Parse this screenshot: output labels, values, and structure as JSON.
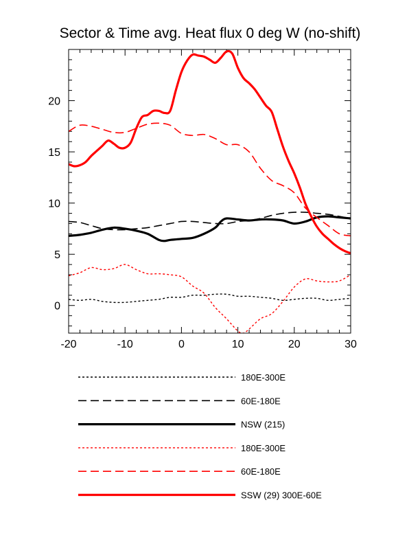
{
  "chart_data": {
    "type": "line",
    "title": "Sector & Time avg. Heat flux 0 deg W (no-shift)",
    "xlabel": "",
    "ylabel": "",
    "xlim": [
      -20,
      30
    ],
    "ylim": [
      -2.7,
      25
    ],
    "x_ticks": [
      -20,
      -10,
      0,
      10,
      20,
      30
    ],
    "x_tick_labels": [
      "-20",
      "-10",
      "0",
      "10",
      "20",
      "30"
    ],
    "y_ticks": [
      0,
      5,
      10,
      15,
      20
    ],
    "y_tick_labels": [
      "0",
      "5",
      "10",
      "15",
      "20"
    ],
    "legend_position": "bottom",
    "series": [
      {
        "name": "180E-300E",
        "color": "#000000",
        "style": "dotted",
        "width": "thin",
        "x": [
          -20,
          -18,
          -16,
          -14,
          -12,
          -10,
          -8,
          -6,
          -4,
          -2,
          0,
          2,
          4,
          6,
          8,
          10,
          12,
          14,
          16,
          18,
          20,
          22,
          24,
          26,
          28,
          30
        ],
        "y": [
          0.6,
          0.5,
          0.6,
          0.4,
          0.3,
          0.3,
          0.4,
          0.5,
          0.6,
          0.8,
          0.8,
          1.0,
          1.0,
          1.1,
          1.1,
          0.9,
          0.9,
          0.8,
          0.7,
          0.5,
          0.6,
          0.7,
          0.7,
          0.5,
          0.6,
          0.7
        ]
      },
      {
        "name": "60E-180E",
        "color": "#000000",
        "style": "dashed",
        "width": "medium",
        "x": [
          -20,
          -18,
          -16,
          -14,
          -12,
          -10,
          -8,
          -6,
          -4,
          -2,
          0,
          2,
          4,
          6,
          8,
          10,
          12,
          14,
          16,
          18,
          20,
          22,
          24,
          26,
          28,
          30
        ],
        "y": [
          8.2,
          8.1,
          7.8,
          7.5,
          7.4,
          7.4,
          7.5,
          7.6,
          7.8,
          8.0,
          8.2,
          8.2,
          8.1,
          8.0,
          8.0,
          8.2,
          8.3,
          8.5,
          8.8,
          9.0,
          9.1,
          9.1,
          9.0,
          8.9,
          8.7,
          8.5
        ]
      },
      {
        "name": "NSW (215)",
        "color": "#000000",
        "style": "solid",
        "width": "thick",
        "x": [
          -20,
          -18,
          -16,
          -14,
          -12,
          -10,
          -8,
          -6,
          -4,
          -3,
          -2,
          0,
          2,
          4,
          6,
          7,
          8,
          10,
          12,
          14,
          16,
          18,
          20,
          22,
          24,
          26,
          28,
          30
        ],
        "y": [
          6.8,
          6.9,
          7.1,
          7.4,
          7.6,
          7.5,
          7.3,
          7.0,
          6.4,
          6.3,
          6.4,
          6.5,
          6.6,
          7.0,
          7.6,
          8.2,
          8.5,
          8.4,
          8.3,
          8.4,
          8.4,
          8.3,
          8.0,
          8.2,
          8.6,
          8.7,
          8.6,
          8.5
        ]
      },
      {
        "name": "180E-300E",
        "color": "#ff0000",
        "style": "dotted",
        "width": "thin",
        "x": [
          -20,
          -18,
          -16,
          -14,
          -12,
          -10,
          -8,
          -6,
          -4,
          -2,
          0,
          2,
          4,
          6,
          8,
          10,
          11,
          12,
          14,
          16,
          18,
          20,
          22,
          24,
          26,
          28,
          30
        ],
        "y": [
          2.9,
          3.2,
          3.7,
          3.5,
          3.6,
          4.0,
          3.5,
          3.1,
          3.1,
          3.0,
          2.8,
          1.9,
          1.2,
          -0.2,
          -1.3,
          -2.5,
          -2.7,
          -2.3,
          -1.3,
          -0.8,
          0.4,
          1.8,
          2.6,
          2.4,
          2.3,
          2.4,
          3.0
        ]
      },
      {
        "name": "60E-180E",
        "color": "#ff0000",
        "style": "dashed",
        "width": "medium",
        "x": [
          -20,
          -18,
          -16,
          -14,
          -12,
          -10,
          -8,
          -6,
          -4,
          -2,
          0,
          2,
          4,
          6,
          8,
          10,
          12,
          14,
          16,
          18,
          20,
          22,
          24,
          26,
          28,
          30
        ],
        "y": [
          17.0,
          17.6,
          17.5,
          17.2,
          16.9,
          16.9,
          17.3,
          17.7,
          17.8,
          17.6,
          16.8,
          16.6,
          16.7,
          16.3,
          15.7,
          15.7,
          15.0,
          13.4,
          12.2,
          11.7,
          11.0,
          9.5,
          8.6,
          7.8,
          7.0,
          6.8
        ]
      },
      {
        "name": "SSW (29) 300E-60E",
        "color": "#ff0000",
        "style": "solid",
        "width": "thick",
        "x": [
          -20,
          -19,
          -18,
          -17,
          -16,
          -15,
          -14,
          -13,
          -12,
          -11,
          -10,
          -9,
          -8,
          -7,
          -6,
          -5,
          -4,
          -3,
          -2,
          -1,
          0,
          1,
          2,
          3,
          4,
          5,
          6,
          7,
          8,
          9,
          10,
          11,
          12,
          13,
          14,
          15,
          16,
          17,
          18,
          19,
          20,
          21,
          22,
          23,
          24,
          25,
          26,
          27,
          28,
          29,
          30
        ],
        "y": [
          13.8,
          13.6,
          13.7,
          14.0,
          14.6,
          15.1,
          15.6,
          16.1,
          15.8,
          15.4,
          15.4,
          15.9,
          17.3,
          18.4,
          18.6,
          19.0,
          19.0,
          18.8,
          19.0,
          21.0,
          22.8,
          23.9,
          24.5,
          24.4,
          24.3,
          24.0,
          23.7,
          24.2,
          24.8,
          24.6,
          23.2,
          22.2,
          21.7,
          21.1,
          20.3,
          19.5,
          18.9,
          17.2,
          15.5,
          14.1,
          12.9,
          11.5,
          9.9,
          8.7,
          7.7,
          7.0,
          6.5,
          6.0,
          5.6,
          5.3,
          5.1
        ]
      }
    ]
  }
}
